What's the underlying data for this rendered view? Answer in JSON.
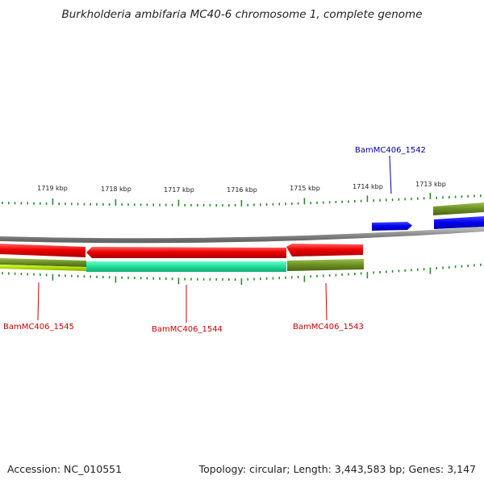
{
  "title": "Burkholderia ambifaria MC40-6 chromosome 1, complete genome",
  "footer": {
    "accession": "Accession: NC_010551",
    "summary": "Topology: circular; Length: 3,443,583 bp; Genes: 3,147"
  },
  "colors": {
    "backbone": "#8a8a8a",
    "tick": "#2a8a2a",
    "forward_gene": "#0000ee",
    "reverse_gene": "#ee0000",
    "olive_track": "#6b8e23",
    "aqua_track": "#22dd99",
    "lime_track": "#aadd00",
    "label_blue": "#0000aa",
    "label_red": "#cc0000"
  },
  "scale_labels": [
    "1719 kbp",
    "1718 kbp",
    "1717 kbp",
    "1716 kbp",
    "1715 kbp",
    "1714 kbp",
    "1713 kbp"
  ],
  "genes": [
    {
      "id": "BamMC406_1542",
      "strand": "+",
      "color": "blue"
    },
    {
      "id": "BamMC406_1543",
      "strand": "-",
      "color": "red"
    },
    {
      "id": "BamMC406_1544",
      "strand": "-",
      "color": "red"
    },
    {
      "id": "BamMC406_1545",
      "strand": "-",
      "color": "red"
    }
  ]
}
